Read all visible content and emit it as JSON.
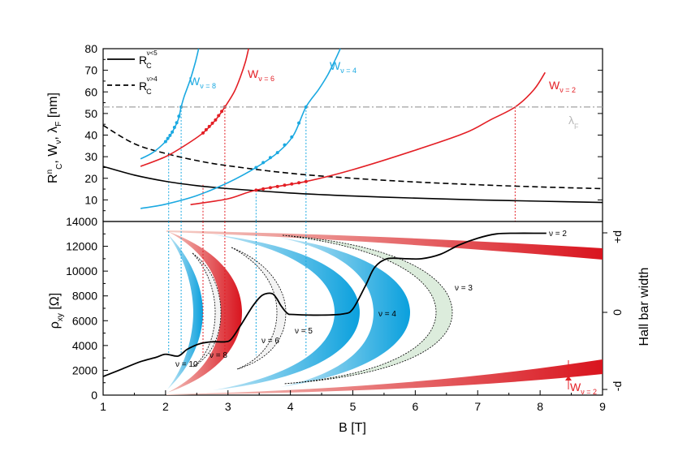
{
  "colors": {
    "axis": "#000000",
    "red": "#e31e24",
    "cyan": "#1ba9e1",
    "green_fill": "#d9ead9",
    "lambda_line": "#a0a0a0"
  },
  "chart_data": [
    {
      "type": "line",
      "ylabel": "R_C^n, W_ν, λ_F [nm]",
      "ylim": [
        0,
        80
      ],
      "yticks": [
        10,
        20,
        30,
        40,
        50,
        60,
        70,
        80
      ],
      "xlim": [
        1,
        9
      ],
      "legend": [
        "R_C^{ν<5}",
        "R_C^{ν>4}"
      ],
      "series": [
        {
          "name": "R_C^{ν<5}",
          "style": "solid",
          "color": "#000000",
          "x": [
            1,
            1.5,
            2,
            2.5,
            3,
            4,
            5,
            6,
            7,
            8,
            9
          ],
          "y": [
            25.5,
            21.5,
            18.6,
            16.6,
            15.2,
            13.2,
            11.8,
            10.8,
            10.0,
            9.4,
            8.8
          ]
        },
        {
          "name": "R_C^{ν>4}",
          "style": "dashed",
          "color": "#000000",
          "x": [
            1,
            1.5,
            2,
            2.5,
            3,
            4,
            5,
            6,
            7,
            8,
            9
          ],
          "y": [
            44.5,
            36.0,
            31.5,
            28.2,
            25.8,
            22.3,
            20.0,
            18.3,
            17.0,
            16.0,
            15.2
          ]
        },
        {
          "name": "W_{ν=8}",
          "color": "#1ba9e1",
          "dotted_from": 2.0,
          "dotted_to": 2.25,
          "x": [
            1.6,
            1.8,
            2.0,
            2.1,
            2.2,
            2.25,
            2.3,
            2.4,
            2.48,
            2.53
          ],
          "y": [
            29,
            32,
            37,
            41,
            47,
            53,
            58,
            66,
            74,
            80
          ]
        },
        {
          "name": "W_{ν=6}",
          "color": "#e31e24",
          "dotted_from": 2.6,
          "dotted_to": 2.95,
          "x": [
            1.6,
            2.0,
            2.3,
            2.6,
            2.8,
            2.95,
            3.1,
            3.2,
            3.28,
            3.33
          ],
          "y": [
            25.5,
            30,
            35,
            41,
            47,
            53,
            60,
            67,
            74,
            80
          ]
        },
        {
          "name": "W_{ν=4}",
          "color": "#1ba9e1",
          "dotted_from": 3.45,
          "dotted_to": 4.25,
          "x": [
            1.6,
            2.0,
            2.5,
            3.0,
            3.45,
            3.8,
            4.05,
            4.25,
            4.45,
            4.6,
            4.72,
            4.8
          ],
          "y": [
            6,
            8,
            12,
            18,
            25,
            32,
            40,
            53,
            61,
            68,
            75,
            80
          ]
        },
        {
          "name": "W_{ν=2}",
          "color": "#e31e24",
          "dotted_from": 3.45,
          "dotted_to": 4.25,
          "x": [
            2.4,
            3.0,
            3.45,
            4.25,
            5.0,
            6.0,
            6.8,
            7.2,
            7.6,
            7.9,
            8.08
          ],
          "y": [
            7.8,
            10.5,
            14.5,
            18.5,
            24,
            33,
            41,
            47,
            53,
            61,
            69
          ]
        },
        {
          "name": "λ_F",
          "style": "dashdot",
          "color": "#a0a0a0",
          "x": [
            1,
            9
          ],
          "y": [
            53,
            53
          ]
        }
      ],
      "vlines": [
        {
          "x": 2.05,
          "color": "cyan"
        },
        {
          "x": 2.25,
          "color": "cyan"
        },
        {
          "x": 2.6,
          "color": "red"
        },
        {
          "x": 2.95,
          "color": "red"
        },
        {
          "x": 3.45,
          "color": "cyan"
        },
        {
          "x": 4.25,
          "color": "cyan"
        },
        {
          "x": 7.6,
          "color": "red"
        }
      ],
      "labels": {
        "legend1_main": "R",
        "legend1_sub": "C",
        "legend1_sup": "ν<5",
        "legend2_main": "R",
        "legend2_sub": "C",
        "legend2_sup": "ν>4",
        "w8_main": "W",
        "w8_sub": "ν = 8",
        "w6_main": "W",
        "w6_sub": "ν = 6",
        "w4_main": "W",
        "w4_sub": "ν = 4",
        "w2_main": "W",
        "w2_sub": "ν = 2",
        "lambda_main": "λ",
        "lambda_sub": "F"
      }
    },
    {
      "type": "line",
      "ylabel": "ρ_xy [Ω]",
      "xlabel": "B [T]",
      "xlim": [
        1,
        9
      ],
      "ylim": [
        0,
        14000
      ],
      "xticks": [
        1,
        2,
        3,
        4,
        5,
        6,
        7,
        8,
        9
      ],
      "yticks": [
        0,
        2000,
        4000,
        6000,
        8000,
        10000,
        12000,
        14000
      ],
      "right_axis_label": "Hall bar width",
      "right_ticks": [
        "+d",
        "0",
        "-d"
      ],
      "series": [
        {
          "name": "ρ_xy",
          "color": "#000000",
          "x": [
            1,
            1.3,
            1.6,
            1.85,
            2.0,
            2.2,
            2.35,
            2.55,
            2.75,
            2.95,
            3.05,
            3.2,
            3.4,
            3.55,
            3.7,
            3.78,
            3.85,
            3.95,
            4.05,
            4.5,
            4.85,
            5.0,
            5.2,
            5.35,
            5.55,
            5.85,
            6.1,
            6.4,
            6.7,
            7.0,
            7.3,
            7.6,
            8.0,
            8.1
          ],
          "y": [
            1500,
            2100,
            2700,
            3050,
            3300,
            3150,
            3700,
            4150,
            4300,
            4300,
            4500,
            5600,
            7200,
            8050,
            8200,
            7800,
            7200,
            6600,
            6500,
            6450,
            6550,
            6950,
            8800,
            10300,
            11000,
            11000,
            11000,
            11350,
            12100,
            12650,
            13000,
            13050,
            13050,
            13050
          ]
        }
      ],
      "annotations": [
        "ν = 2",
        "ν = 3",
        "ν = 4",
        "ν = 5",
        "ν = 6",
        "ν = 8",
        "ν = 10"
      ],
      "width_label_main": "W",
      "width_label_sub": "ν = 2"
    }
  ]
}
